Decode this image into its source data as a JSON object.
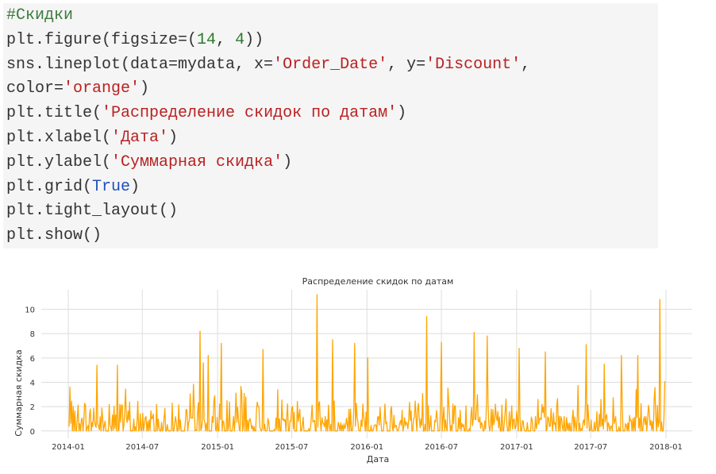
{
  "code_cell": {
    "lines": [
      [
        {
          "t": "#Скидки",
          "c": "comment"
        }
      ],
      [
        {
          "t": "plt.figure(figsize=(",
          "c": ""
        },
        {
          "t": "14",
          "c": "num"
        },
        {
          "t": ", ",
          "c": ""
        },
        {
          "t": "4",
          "c": "num"
        },
        {
          "t": "))",
          "c": ""
        }
      ],
      [
        {
          "t": "sns.lineplot(data=mydata, x=",
          "c": ""
        },
        {
          "t": "'Order_Date'",
          "c": "str"
        },
        {
          "t": ", y=",
          "c": ""
        },
        {
          "t": "'Discount'",
          "c": "str"
        },
        {
          "t": ",",
          "c": ""
        }
      ],
      [
        {
          "t": "color=",
          "c": ""
        },
        {
          "t": "'orange'",
          "c": "str"
        },
        {
          "t": ")",
          "c": ""
        }
      ],
      [
        {
          "t": "plt.title(",
          "c": ""
        },
        {
          "t": "'Распределение скидок по датам'",
          "c": "str"
        },
        {
          "t": ")",
          "c": ""
        }
      ],
      [
        {
          "t": "plt.xlabel(",
          "c": ""
        },
        {
          "t": "'Дата'",
          "c": "str"
        },
        {
          "t": ")",
          "c": ""
        }
      ],
      [
        {
          "t": "plt.ylabel(",
          "c": ""
        },
        {
          "t": "'Суммарная скидка'",
          "c": "str"
        },
        {
          "t": ")",
          "c": ""
        }
      ],
      [
        {
          "t": "plt.grid(",
          "c": ""
        },
        {
          "t": "True",
          "c": "kw"
        },
        {
          "t": ")",
          "c": ""
        }
      ],
      [
        {
          "t": "plt.tight_layout()",
          "c": ""
        }
      ],
      [
        {
          "t": "plt.show()",
          "c": ""
        }
      ]
    ]
  },
  "colors": {
    "line": "#ffa500",
    "grid": "#dddddd",
    "text": "#333333",
    "code_bg": "#f5f5f5"
  },
  "chart_data": {
    "type": "line",
    "title": "Распределение скидок по датам",
    "xlabel": "Дата",
    "ylabel": "Суммарная скидка",
    "x_ticks": [
      "2014-01",
      "2014-07",
      "2015-01",
      "2015-07",
      "2016-01",
      "2016-07",
      "2017-01",
      "2017-07",
      "2018-01"
    ],
    "y_ticks": [
      0,
      2,
      4,
      6,
      8,
      10
    ],
    "ylim": [
      -0.6,
      11.6
    ],
    "xlim": [
      "2013-10-27",
      "2018-03-06"
    ],
    "grid": true,
    "series": [
      {
        "color": "#ffa500",
        "x_start": "2014-01-03",
        "x_end": "2017-12-30",
        "peaks": [
          {
            "x": "2014-01-06",
            "y": 3.6
          },
          {
            "x": "2014-03-12",
            "y": 5.4
          },
          {
            "x": "2014-05-01",
            "y": 5.4
          },
          {
            "x": "2014-11-20",
            "y": 8.2
          },
          {
            "x": "2014-11-28",
            "y": 5.6
          },
          {
            "x": "2014-12-10",
            "y": 6.2
          },
          {
            "x": "2015-01-10",
            "y": 7.2
          },
          {
            "x": "2015-04-22",
            "y": 6.7
          },
          {
            "x": "2015-09-02",
            "y": 11.2
          },
          {
            "x": "2015-10-10",
            "y": 7.5
          },
          {
            "x": "2015-12-02",
            "y": 7.2
          },
          {
            "x": "2016-01-04",
            "y": 6.0
          },
          {
            "x": "2016-05-27",
            "y": 9.4
          },
          {
            "x": "2016-07-01",
            "y": 7.3
          },
          {
            "x": "2016-09-20",
            "y": 8.1
          },
          {
            "x": "2016-10-22",
            "y": 7.8
          },
          {
            "x": "2017-01-08",
            "y": 6.8
          },
          {
            "x": "2017-03-12",
            "y": 6.5
          },
          {
            "x": "2017-06-20",
            "y": 7.1
          },
          {
            "x": "2017-08-03",
            "y": 5.5
          },
          {
            "x": "2017-09-15",
            "y": 6.2
          },
          {
            "x": "2017-10-25",
            "y": 6.2
          },
          {
            "x": "2017-12-17",
            "y": 10.8
          },
          {
            "x": "2017-12-30",
            "y": 4.1
          }
        ],
        "typical_range": [
          0,
          4.0
        ]
      }
    ]
  }
}
